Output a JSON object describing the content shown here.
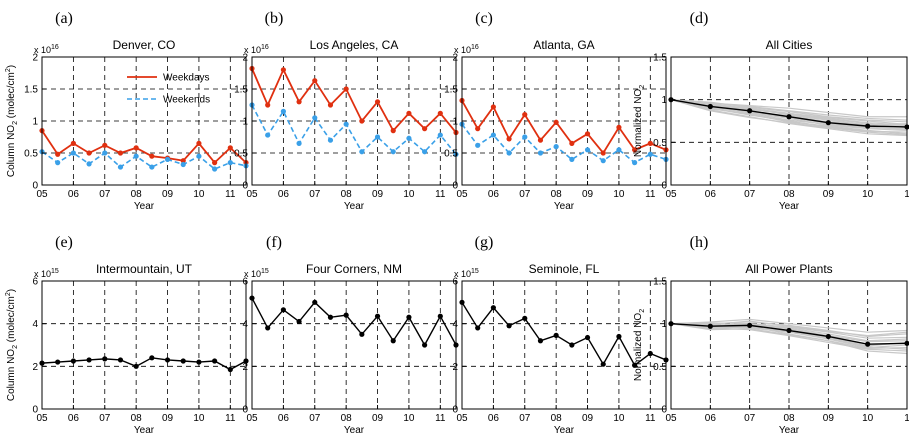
{
  "colors": {
    "weekdays": "#e03010",
    "weekends": "#3aa0e8",
    "black": "#000000",
    "gray": "#c8c8c8"
  },
  "chart_data": [
    {
      "type": "line",
      "panel_label": "(a)",
      "title": "Denver, CO",
      "xlabel": "Year",
      "ylabel": "Column NO2 (molec/cm2)",
      "ylabel_parts": [
        "Column NO",
        "2",
        " (molec/cm",
        "2",
        ")"
      ],
      "multiplier": "x 10",
      "multiplier_exp": "16",
      "xlim": [
        5,
        11.5
      ],
      "ylim": [
        0,
        2
      ],
      "xticks": [
        "05",
        "06",
        "07",
        "08",
        "09",
        "10",
        "11"
      ],
      "yticks": [
        "0",
        "0.5",
        "1",
        "1.5",
        "2"
      ],
      "legend": [
        "Weekdays",
        "Weekends"
      ],
      "series": [
        {
          "name": "Weekdays",
          "x": [
            5,
            5.5,
            6,
            6.5,
            7,
            7.5,
            8,
            8.5,
            9,
            9.5,
            10,
            10.5,
            11,
            11.5
          ],
          "values": [
            0.85,
            0.48,
            0.65,
            0.5,
            0.62,
            0.5,
            0.58,
            0.45,
            0.42,
            0.38,
            0.65,
            0.35,
            0.58,
            0.35
          ]
        },
        {
          "name": "Weekends",
          "x": [
            5,
            5.5,
            6,
            6.5,
            7,
            7.5,
            8,
            8.5,
            9,
            9.5,
            10,
            10.5,
            11,
            11.5
          ],
          "values": [
            0.52,
            0.35,
            0.5,
            0.33,
            0.5,
            0.28,
            0.45,
            0.28,
            0.4,
            0.32,
            0.45,
            0.25,
            0.35,
            0.3
          ]
        }
      ]
    },
    {
      "type": "line",
      "panel_label": "(b)",
      "title": "Los Angeles, CA",
      "xlabel": "Year",
      "ylabel": "",
      "multiplier": "x 10",
      "multiplier_exp": "16",
      "xlim": [
        5,
        11.5
      ],
      "ylim": [
        0,
        2
      ],
      "xticks": [
        "05",
        "06",
        "07",
        "08",
        "09",
        "10",
        "11"
      ],
      "yticks": [
        "0",
        "0.5",
        "1",
        "1.5",
        "2"
      ],
      "series": [
        {
          "name": "Weekdays",
          "x": [
            5,
            5.5,
            6,
            6.5,
            7,
            7.5,
            8,
            8.5,
            9,
            9.5,
            10,
            10.5,
            11,
            11.5
          ],
          "values": [
            1.82,
            1.25,
            1.8,
            1.3,
            1.63,
            1.25,
            1.5,
            1.0,
            1.3,
            0.85,
            1.12,
            0.88,
            1.12,
            0.82
          ]
        },
        {
          "name": "Weekends",
          "x": [
            5,
            5.5,
            6,
            6.5,
            7,
            7.5,
            8,
            8.5,
            9,
            9.5,
            10,
            10.5,
            11,
            11.5
          ],
          "values": [
            1.25,
            0.78,
            1.15,
            0.65,
            1.05,
            0.7,
            0.95,
            0.52,
            0.75,
            0.52,
            0.73,
            0.52,
            0.78,
            0.48
          ]
        }
      ]
    },
    {
      "type": "line",
      "panel_label": "(c)",
      "title": "Atlanta, GA",
      "xlabel": "Year",
      "ylabel": "",
      "multiplier": "x 10",
      "multiplier_exp": "16",
      "xlim": [
        5,
        11.5
      ],
      "ylim": [
        0,
        2
      ],
      "xticks": [
        "05",
        "06",
        "07",
        "08",
        "09",
        "10",
        "11"
      ],
      "yticks": [
        "0",
        "0.5",
        "1",
        "1.5",
        "2"
      ],
      "series": [
        {
          "name": "Weekdays",
          "x": [
            5,
            5.5,
            6,
            6.5,
            7,
            7.5,
            8,
            8.5,
            9,
            9.5,
            10,
            10.5,
            11,
            11.5
          ],
          "values": [
            1.32,
            0.88,
            1.22,
            0.72,
            1.1,
            0.7,
            0.98,
            0.65,
            0.8,
            0.5,
            0.9,
            0.55,
            0.65,
            0.55
          ]
        },
        {
          "name": "Weekends",
          "x": [
            5,
            5.5,
            6,
            6.5,
            7,
            7.5,
            8,
            8.5,
            9,
            9.5,
            10,
            10.5,
            11,
            11.5
          ],
          "values": [
            0.95,
            0.62,
            0.78,
            0.5,
            0.75,
            0.5,
            0.6,
            0.4,
            0.55,
            0.38,
            0.55,
            0.35,
            0.48,
            0.4
          ]
        }
      ]
    },
    {
      "type": "line",
      "panel_label": "(d)",
      "title": "All Cities",
      "xlabel": "Year",
      "ylabel": "Normalized NO2",
      "ylabel_parts": [
        "Normalized NO",
        "2"
      ],
      "multiplier": "",
      "multiplier_exp": "",
      "xlim": [
        5,
        11
      ],
      "ylim": [
        0,
        1.5
      ],
      "xticks": [
        "05",
        "06",
        "07",
        "08",
        "09",
        "10",
        "1"
      ],
      "yticks": [
        "0",
        "0.5",
        "1",
        "1.5"
      ],
      "series": [
        {
          "name": "",
          "x": [
            5,
            6,
            7,
            8,
            9,
            10,
            11
          ],
          "values": [
            1.0,
            0.92,
            0.87,
            0.8,
            0.73,
            0.69,
            0.68
          ]
        }
      ],
      "background_series": [
        [
          1.0,
          0.96,
          0.93,
          0.9,
          0.85,
          0.8,
          0.8
        ],
        [
          1.0,
          0.95,
          0.88,
          0.84,
          0.78,
          0.73,
          0.7
        ],
        [
          1.0,
          0.9,
          0.82,
          0.75,
          0.68,
          0.63,
          0.62
        ],
        [
          1.0,
          0.88,
          0.8,
          0.72,
          0.66,
          0.6,
          0.58
        ],
        [
          1.0,
          0.93,
          0.9,
          0.82,
          0.76,
          0.7,
          0.72
        ],
        [
          1.0,
          0.97,
          0.91,
          0.86,
          0.8,
          0.76,
          0.74
        ],
        [
          1.0,
          0.91,
          0.85,
          0.78,
          0.7,
          0.66,
          0.64
        ],
        [
          1.0,
          0.89,
          0.84,
          0.76,
          0.71,
          0.67,
          0.66
        ],
        [
          1.0,
          0.94,
          0.86,
          0.81,
          0.74,
          0.71,
          0.69
        ],
        [
          1.0,
          0.92,
          0.89,
          0.83,
          0.77,
          0.72,
          0.67
        ],
        [
          1.0,
          0.9,
          0.83,
          0.74,
          0.69,
          0.64,
          0.6
        ],
        [
          1.0,
          0.96,
          0.92,
          0.87,
          0.82,
          0.78,
          0.76
        ],
        [
          1.0,
          0.93,
          0.86,
          0.79,
          0.72,
          0.68,
          0.65
        ],
        [
          1.0,
          0.87,
          0.79,
          0.73,
          0.67,
          0.62,
          0.59
        ],
        [
          1.0,
          0.95,
          0.9,
          0.84,
          0.79,
          0.75,
          0.71
        ]
      ]
    },
    {
      "type": "line",
      "panel_label": "(e)",
      "title": "Intermountain, UT",
      "xlabel": "Year",
      "ylabel": "Column NO2 (molec/cm2)",
      "ylabel_parts": [
        "Column NO",
        "2",
        " (molec/cm",
        "2",
        ")"
      ],
      "multiplier": "x 10",
      "multiplier_exp": "15",
      "xlim": [
        5,
        11.5
      ],
      "ylim": [
        0,
        6
      ],
      "xticks": [
        "05",
        "06",
        "07",
        "08",
        "09",
        "10",
        "11"
      ],
      "yticks": [
        "0",
        "2",
        "4",
        "6"
      ],
      "series": [
        {
          "name": "",
          "x": [
            5,
            5.5,
            6,
            6.5,
            7,
            7.5,
            8,
            8.5,
            9,
            9.5,
            10,
            10.5,
            11,
            11.5
          ],
          "values": [
            2.15,
            2.2,
            2.25,
            2.3,
            2.35,
            2.3,
            2.0,
            2.4,
            2.3,
            2.25,
            2.2,
            2.25,
            1.85,
            2.25
          ]
        }
      ]
    },
    {
      "type": "line",
      "panel_label": "(f)",
      "title": "Four Corners, NM",
      "xlabel": "Year",
      "ylabel": "",
      "multiplier": "x 10",
      "multiplier_exp": "15",
      "xlim": [
        5,
        11.5
      ],
      "ylim": [
        0,
        6
      ],
      "xticks": [
        "05",
        "06",
        "07",
        "08",
        "09",
        "10",
        "11"
      ],
      "yticks": [
        "0",
        "2",
        "4",
        "6"
      ],
      "series": [
        {
          "name": "",
          "x": [
            5,
            5.5,
            6,
            6.5,
            7,
            7.5,
            8,
            8.5,
            9,
            9.5,
            10,
            10.5,
            11,
            11.5
          ],
          "values": [
            5.2,
            3.8,
            4.65,
            4.1,
            5.0,
            4.3,
            4.4,
            3.5,
            4.35,
            3.2,
            4.3,
            3.0,
            4.35,
            3.0
          ]
        }
      ]
    },
    {
      "type": "line",
      "panel_label": "(g)",
      "title": "Seminole, FL",
      "xlabel": "Year",
      "ylabel": "",
      "multiplier": "x 10",
      "multiplier_exp": "15",
      "xlim": [
        5,
        11.5
      ],
      "ylim": [
        0,
        6
      ],
      "xticks": [
        "05",
        "06",
        "07",
        "08",
        "09",
        "10",
        "11"
      ],
      "yticks": [
        "0",
        "2",
        "4",
        "6"
      ],
      "series": [
        {
          "name": "",
          "x": [
            5,
            5.5,
            6,
            6.5,
            7,
            7.5,
            8,
            8.5,
            9,
            9.5,
            10,
            10.5,
            11,
            11.5
          ],
          "values": [
            5.0,
            3.8,
            4.75,
            3.9,
            4.25,
            3.2,
            3.45,
            3.0,
            3.35,
            2.1,
            3.4,
            2.05,
            2.6,
            2.3
          ]
        }
      ]
    },
    {
      "type": "line",
      "panel_label": "(h)",
      "title": "All Power Plants",
      "xlabel": "Year",
      "ylabel": "Normalized NO2",
      "ylabel_parts": [
        "Normalized NO",
        "2"
      ],
      "multiplier": "",
      "multiplier_exp": "",
      "xlim": [
        5,
        11
      ],
      "ylim": [
        0,
        1.5
      ],
      "xticks": [
        "05",
        "06",
        "07",
        "08",
        "09",
        "10",
        "1"
      ],
      "yticks": [
        "0",
        "0.5",
        "1",
        "1.5"
      ],
      "series": [
        {
          "name": "",
          "x": [
            5,
            6,
            7,
            8,
            9,
            10,
            11
          ],
          "values": [
            1.0,
            0.97,
            0.98,
            0.92,
            0.85,
            0.76,
            0.77
          ]
        }
      ],
      "background_series": [
        [
          1.0,
          1.02,
          1.05,
          1.0,
          0.95,
          0.9,
          0.92
        ],
        [
          1.0,
          0.98,
          1.0,
          0.95,
          0.88,
          0.8,
          0.82
        ],
        [
          1.0,
          0.95,
          0.93,
          0.86,
          0.78,
          0.7,
          0.68
        ],
        [
          1.0,
          1.0,
          1.02,
          0.98,
          0.92,
          0.85,
          0.88
        ],
        [
          1.0,
          0.96,
          0.95,
          0.9,
          0.82,
          0.72,
          0.75
        ],
        [
          1.0,
          0.94,
          0.97,
          0.88,
          0.8,
          0.68,
          0.65
        ],
        [
          1.0,
          1.01,
          1.0,
          0.96,
          0.9,
          0.83,
          0.84
        ],
        [
          1.0,
          0.97,
          0.96,
          0.91,
          0.84,
          0.74,
          0.78
        ],
        [
          1.0,
          0.99,
          1.03,
          0.97,
          0.91,
          0.86,
          0.9
        ],
        [
          1.0,
          0.93,
          0.94,
          0.87,
          0.8,
          0.71,
          0.72
        ],
        [
          1.0,
          0.98,
          0.99,
          0.94,
          0.86,
          0.79,
          0.8
        ],
        [
          1.0,
          0.96,
          0.98,
          0.9,
          0.83,
          0.73,
          0.7
        ]
      ]
    }
  ]
}
